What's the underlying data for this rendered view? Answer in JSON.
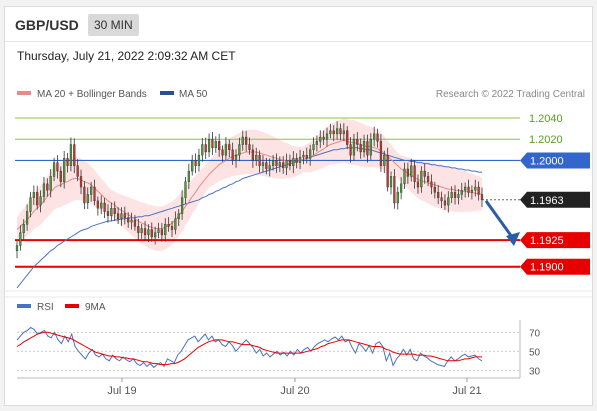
{
  "header": {
    "pair": "GBP/USD",
    "timeframe": "30 MIN"
  },
  "date_line": "Thursday, July 21, 2022 2:09:32 AM CET",
  "legend": {
    "ma20": "MA 20 + Bollinger Bands",
    "ma50": "MA 50",
    "credit": "Research © 2022 Trading Central"
  },
  "rsi_legend": {
    "rsi": "RSI",
    "ma9": "9MA"
  },
  "colors": {
    "candle_up": "#4a9e3a",
    "candle_down": "#c0392b",
    "bollinger": "#fde3e3",
    "ma20": "#e88a8a",
    "ma50": "#4a72c4",
    "resistance": "#8cc63f",
    "pivot": "#3366cc",
    "support": "#e60000",
    "current": "#222222",
    "arrow": "#2a5caa"
  },
  "chart_data": [
    {
      "type": "candlestick",
      "title": "",
      "x_labels": [
        "Jul 19",
        "Jul 20",
        "Jul 21"
      ],
      "ylim": [
        1.188,
        1.2055
      ],
      "levels": [
        {
          "value": 1.204,
          "label": "1.2040",
          "kind": "resistance"
        },
        {
          "value": 1.202,
          "label": "1.2020",
          "kind": "resistance"
        },
        {
          "value": 1.2,
          "label": "1.2000",
          "kind": "pivot"
        },
        {
          "value": 1.1963,
          "label": "1.1963",
          "kind": "current"
        },
        {
          "value": 1.1925,
          "label": "1.1925",
          "kind": "support"
        },
        {
          "value": 1.19,
          "label": "1.1900",
          "kind": "support"
        }
      ],
      "close": [
        1.192,
        1.1932,
        1.194,
        1.1952,
        1.1965,
        1.197,
        1.1958,
        1.1966,
        1.1978,
        1.1972,
        1.1985,
        1.1998,
        1.199,
        1.198,
        1.2002,
        1.1995,
        1.2015,
        1.1995,
        1.1985,
        1.1975,
        1.196,
        1.1968,
        1.1975,
        1.1962,
        1.1955,
        1.196,
        1.1952,
        1.1948,
        1.1955,
        1.195,
        1.1945,
        1.195,
        1.1946,
        1.1942,
        1.1944,
        1.1938,
        1.1932,
        1.1936,
        1.193,
        1.1935,
        1.1928,
        1.1932,
        1.1935,
        1.193,
        1.194,
        1.1938,
        1.1935,
        1.1945,
        1.195,
        1.1965,
        1.198,
        1.199,
        1.2,
        1.1995,
        1.2005,
        1.2015,
        1.2008,
        1.202,
        1.2012,
        1.2018,
        1.201,
        1.2005,
        1.2015,
        1.201,
        1.2,
        1.2005,
        1.2015,
        1.2022,
        1.2015,
        1.201,
        1.2,
        1.2005,
        1.1995,
        1.1998,
        1.1992,
        1.1995,
        1.2,
        1.1995,
        1.1998,
        1.1993,
        1.2,
        1.1995,
        1.2002,
        1.1998,
        1.2003,
        1.2005,
        1.2002,
        1.201,
        1.2015,
        1.2018,
        1.2022,
        1.202,
        1.2025,
        1.2028,
        1.2025,
        1.203,
        1.2025,
        1.2028,
        1.2015,
        1.2005,
        1.202,
        1.2015,
        1.2008,
        1.2018,
        1.2005,
        1.202,
        1.2025,
        1.2018,
        1.1995,
        1.2005,
        1.1975,
        1.1985,
        1.196,
        1.197,
        1.1978,
        1.1992,
        1.1985,
        1.1995,
        1.198,
        1.1975,
        1.199,
        1.1985,
        1.198,
        1.1975,
        1.197,
        1.1965,
        1.1962,
        1.1958,
        1.1965,
        1.197,
        1.1965,
        1.1968,
        1.1972,
        1.1975,
        1.197,
        1.1972,
        1.1975,
        1.1968,
        1.1963
      ],
      "ma20": [
        1.1935,
        1.1938,
        1.1941,
        1.1944,
        1.1948,
        1.1952,
        1.1955,
        1.1958,
        1.1962,
        1.1966,
        1.197,
        1.1974,
        1.1976,
        1.1977,
        1.1979,
        1.198,
        1.1982,
        1.1983,
        1.1983,
        1.1982,
        1.198,
        1.1979,
        1.1977,
        1.1974,
        1.1971,
        1.1968,
        1.1965,
        1.1962,
        1.196,
        1.1958,
        1.1955,
        1.1953,
        1.1951,
        1.1949,
        1.1947,
        1.1945,
        1.1943,
        1.1941,
        1.194,
        1.1938,
        1.1937,
        1.1936,
        1.1936,
        1.1936,
        1.1937,
        1.1939,
        1.1941,
        1.1944,
        1.1948,
        1.1952,
        1.1957,
        1.1961,
        1.1966,
        1.197,
        1.1975,
        1.1979,
        1.1983,
        1.1987,
        1.199,
        1.1993,
        1.1996,
        1.1998,
        1.2,
        1.2002,
        1.2004,
        1.2005,
        1.2006,
        1.2007,
        1.2008,
        1.2008,
        1.2008,
        1.2008,
        1.2007,
        1.2006,
        1.2005,
        1.2004,
        1.2003,
        1.2002,
        1.2001,
        1.2,
        1.2,
        1.1999,
        1.1999,
        1.1999,
        1.2,
        1.2001,
        1.2002,
        1.2003,
        1.2005,
        1.2007,
        1.2009,
        1.2011,
        1.2013,
        1.2015,
        1.2016,
        1.2017,
        1.2018,
        1.2019,
        1.2018,
        1.2017,
        1.2017,
        1.2016,
        1.2015,
        1.2014,
        1.2013,
        1.2013,
        1.2012,
        1.2011,
        1.2009,
        1.2007,
        1.2004,
        1.2001,
        1.1998,
        1.1995,
        1.1992,
        1.199,
        1.1988,
        1.1986,
        1.1984,
        1.1982,
        1.1981,
        1.198,
        1.1979,
        1.1978,
        1.1977,
        1.1976,
        1.1975,
        1.1974,
        1.1973,
        1.1973,
        1.1972,
        1.1972,
        1.1971,
        1.1971,
        1.197,
        1.197,
        1.1969,
        1.1969,
        1.1968
      ],
      "ma50": [
        1.188,
        1.1884,
        1.1888,
        1.1892,
        1.1896,
        1.19,
        1.1903,
        1.1906,
        1.1909,
        1.1912,
        1.1915,
        1.1917,
        1.192,
        1.1922,
        1.1924,
        1.1926,
        1.1928,
        1.193,
        1.1932,
        1.1934,
        1.1935,
        1.1936,
        1.1938,
        1.1939,
        1.194,
        1.1941,
        1.1942,
        1.1943,
        1.1943,
        1.1944,
        1.1944,
        1.1945,
        1.1945,
        1.1946,
        1.1946,
        1.1946,
        1.1947,
        1.1947,
        1.1948,
        1.1948,
        1.1949,
        1.195,
        1.1951,
        1.1952,
        1.1953,
        1.1954,
        1.1955,
        1.1956,
        1.1957,
        1.1958,
        1.1959,
        1.196,
        1.1961,
        1.1962,
        1.1963,
        1.1965,
        1.1966,
        1.1968,
        1.1969,
        1.1971,
        1.1972,
        1.1974,
        1.1975,
        1.1977,
        1.1978,
        1.198,
        1.1981,
        1.1983,
        1.1984,
        1.1985,
        1.1986,
        1.1987,
        1.1988,
        1.1989,
        1.199,
        1.1991,
        1.1992,
        1.1993,
        1.1994,
        1.1995,
        1.1996,
        1.1997,
        1.1998,
        1.1999,
        1.2,
        1.2001,
        1.2002,
        1.2003,
        1.2004,
        1.2005,
        1.2006,
        1.2007,
        1.2008,
        1.2009,
        1.201,
        1.201,
        1.2011,
        1.2011,
        1.2012,
        1.2012,
        1.2012,
        1.2012,
        1.2011,
        1.2011,
        1.201,
        1.201,
        1.2009,
        1.2008,
        1.2007,
        1.2006,
        1.2005,
        1.2004,
        1.2003,
        1.2002,
        1.2001,
        1.2,
        1.2,
        1.1999,
        1.1999,
        1.1998,
        1.1998,
        1.1997,
        1.1997,
        1.1996,
        1.1996,
        1.1995,
        1.1995,
        1.1994,
        1.1994,
        1.1993,
        1.1993,
        1.1992,
        1.1992,
        1.1991,
        1.1991,
        1.199,
        1.199,
        1.1989,
        1.1989
      ]
    },
    {
      "type": "line",
      "title": "",
      "ylim": [
        25,
        85
      ],
      "y_ticks": [
        70,
        50,
        30
      ],
      "series": [
        {
          "name": "RSI",
          "values": [
            62,
            66,
            70,
            72,
            75,
            73,
            68,
            70,
            72,
            66,
            64,
            70,
            62,
            58,
            66,
            60,
            68,
            55,
            50,
            46,
            42,
            48,
            52,
            46,
            44,
            47,
            42,
            40,
            46,
            42,
            40,
            44,
            41,
            39,
            42,
            37,
            35,
            38,
            34,
            37,
            33,
            36,
            38,
            34,
            42,
            40,
            38,
            46,
            50,
            56,
            62,
            64,
            66,
            60,
            64,
            68,
            62,
            66,
            60,
            62,
            57,
            55,
            60,
            56,
            50,
            54,
            58,
            62,
            58,
            54,
            48,
            52,
            45,
            48,
            44,
            47,
            50,
            46,
            49,
            45,
            50,
            46,
            52,
            48,
            52,
            54,
            50,
            55,
            58,
            60,
            62,
            60,
            63,
            65,
            62,
            66,
            60,
            62,
            54,
            48,
            58,
            55,
            50,
            56,
            48,
            58,
            60,
            55,
            40,
            48,
            35,
            42,
            46,
            52,
            46,
            52,
            42,
            40,
            48,
            45,
            43,
            40,
            38,
            36,
            35,
            34,
            40,
            44,
            40,
            42,
            45,
            47,
            44,
            45,
            46,
            42,
            40
          ]
        },
        {
          "name": "9MA",
          "values": [
            55,
            57,
            60,
            62,
            64,
            66,
            68,
            69,
            70,
            70,
            69,
            68,
            67,
            66,
            65,
            64,
            63,
            61,
            59,
            57,
            55,
            53,
            51,
            49,
            48,
            47,
            46,
            45,
            45,
            44,
            44,
            43,
            43,
            42,
            42,
            41,
            40,
            39,
            39,
            38,
            37,
            37,
            36,
            36,
            36,
            37,
            37,
            38,
            40,
            42,
            45,
            48,
            51,
            54,
            56,
            58,
            60,
            61,
            62,
            62,
            62,
            61,
            60,
            60,
            59,
            58,
            57,
            57,
            57,
            56,
            55,
            54,
            52,
            51,
            50,
            49,
            48,
            48,
            48,
            48,
            48,
            48,
            48,
            48,
            49,
            50,
            51,
            52,
            53,
            55,
            56,
            58,
            59,
            60,
            61,
            62,
            62,
            62,
            61,
            60,
            59,
            58,
            57,
            56,
            55,
            55,
            55,
            54,
            52,
            51,
            49,
            48,
            47,
            47,
            47,
            47,
            47,
            46,
            46,
            46,
            45,
            45,
            44,
            43,
            42,
            41,
            40,
            40,
            40,
            40,
            41,
            42,
            42,
            43,
            44,
            44,
            44
          ]
        }
      ]
    }
  ]
}
